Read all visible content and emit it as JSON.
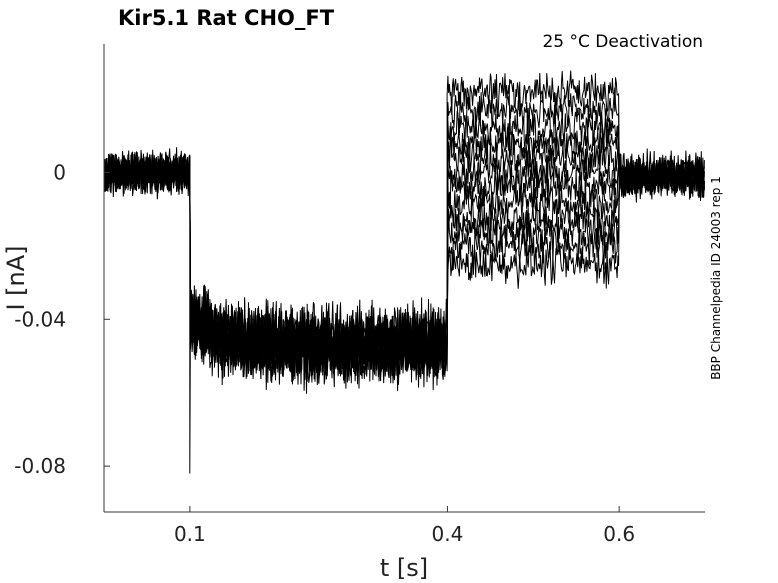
{
  "chart_data": {
    "type": "line",
    "title": "Kir5.1  Rat  CHO_FT",
    "condition": "25 °C  Deactivation",
    "xlabel": "t [s]",
    "ylabel": "I [nA]",
    "side_label": "BBP Channelpedia ID 24003 rep 1",
    "xlim": [
      0.0,
      0.7
    ],
    "ylim": [
      -0.0925,
      0.035
    ],
    "xticks": [
      0.1,
      0.4,
      0.6
    ],
    "xtick_labels": [
      "0.1",
      "0.4",
      "0.6"
    ],
    "yticks": [
      0,
      -0.04,
      -0.08
    ],
    "ytick_labels": [
      "0",
      "-0.04",
      "-0.08"
    ],
    "grid": false,
    "line_color": "#000000",
    "epochs": [
      {
        "t_start": 0.0,
        "t_end": 0.1,
        "level": 0.0
      },
      {
        "t_start": 0.1,
        "t_end": 0.4,
        "level": -0.047
      },
      {
        "t_start": 0.4,
        "t_end": 0.6,
        "level": "-0.025 to 0.022 (one level per sweep)"
      },
      {
        "t_start": 0.6,
        "t_end": 0.7,
        "level": -0.001
      }
    ],
    "series": [
      {
        "values": {
          "hold": 0.0,
          "step": -0.047,
          "test": 0.022,
          "tail": -0.001
        }
      },
      {
        "values": {
          "hold": 0.0,
          "step": -0.047,
          "test": 0.017,
          "tail": -0.001
        }
      },
      {
        "values": {
          "hold": 0.0,
          "step": -0.047,
          "test": 0.012,
          "tail": -0.001
        }
      },
      {
        "values": {
          "hold": 0.0,
          "step": -0.047,
          "test": 0.008,
          "tail": -0.001
        }
      },
      {
        "values": {
          "hold": 0.0,
          "step": -0.047,
          "test": 0.004,
          "tail": -0.001
        }
      },
      {
        "values": {
          "hold": 0.0,
          "step": -0.047,
          "test": 0.0,
          "tail": -0.001
        }
      },
      {
        "values": {
          "hold": 0.0,
          "step": -0.047,
          "test": -0.004,
          "tail": -0.001
        }
      },
      {
        "values": {
          "hold": 0.0,
          "step": -0.047,
          "test": -0.008,
          "tail": -0.001
        }
      },
      {
        "values": {
          "hold": 0.0,
          "step": -0.047,
          "test": -0.012,
          "tail": -0.001
        }
      },
      {
        "values": {
          "hold": 0.0,
          "step": -0.047,
          "test": -0.016,
          "tail": -0.001
        }
      },
      {
        "values": {
          "hold": 0.0,
          "step": -0.047,
          "test": -0.02,
          "tail": -0.001
        }
      },
      {
        "values": {
          "hold": 0.0,
          "step": -0.047,
          "test": -0.025,
          "tail": -0.001
        }
      }
    ],
    "transients": {
      "at_0.1": -0.082,
      "at_0.4": 0.021
    },
    "noise_amplitude": 0.004
  }
}
